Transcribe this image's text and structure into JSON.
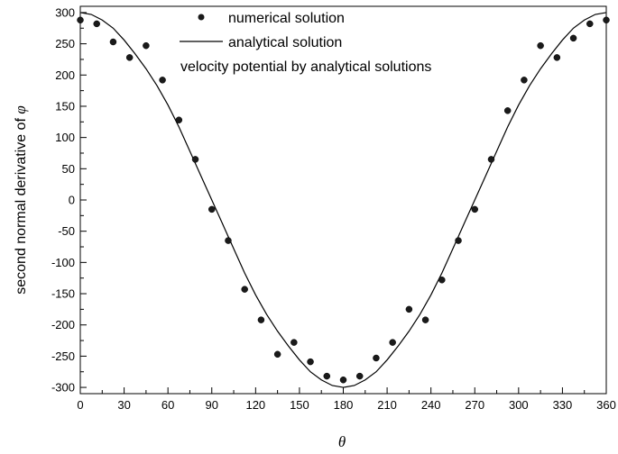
{
  "chart_data": {
    "type": "scatter",
    "title": "",
    "xlabel": "θ",
    "ylabel_text": "second normal derivative of ",
    "ylabel_symbol": "φ",
    "xlim": [
      0,
      360
    ],
    "ylim": [
      -310,
      310
    ],
    "x_ticks": [
      0,
      30,
      60,
      90,
      120,
      150,
      180,
      210,
      240,
      270,
      300,
      330,
      360
    ],
    "y_ticks": [
      300,
      250,
      200,
      150,
      100,
      50,
      0,
      -50,
      -100,
      -150,
      -200,
      -250,
      -300
    ],
    "grid": false,
    "legend": {
      "placement": "top-center",
      "entries": [
        {
          "label": "numerical solution",
          "marker": "point"
        },
        {
          "label": "analytical solution",
          "marker": "line"
        },
        {
          "label": "velocity potential by analytical solutions",
          "marker": "none"
        }
      ]
    },
    "series": [
      {
        "name": "numerical solution",
        "type": "scatter",
        "x": [
          0,
          11.25,
          22.5,
          33.75,
          45,
          56.25,
          67.5,
          78.75,
          90,
          101.25,
          112.5,
          123.75,
          135,
          146.25,
          157.5,
          168.75,
          180,
          191.25,
          202.5,
          213.75,
          225,
          236.25,
          247.5,
          258.75,
          270,
          281.25,
          292.5,
          303.75,
          315,
          326.25,
          337.5,
          348.75,
          360
        ],
        "y": [
          288,
          282,
          253,
          228,
          247,
          192,
          128,
          65,
          -15,
          -65,
          -143,
          -192,
          -247,
          -228,
          -259,
          -282,
          -288,
          -282,
          -253,
          -228,
          -175,
          -192,
          -128,
          -65,
          -15,
          65,
          143,
          192,
          247,
          228,
          259,
          282,
          288
        ]
      },
      {
        "name": "analytical solution",
        "type": "line",
        "x": [
          0,
          7.5,
          15,
          22.5,
          30,
          37.5,
          45,
          52.5,
          60,
          67.5,
          75,
          82.5,
          90,
          97.5,
          105,
          112.5,
          120,
          127.5,
          135,
          142.5,
          150,
          157.5,
          165,
          172.5,
          180,
          187.5,
          195,
          202.5,
          210,
          217.5,
          225,
          232.5,
          240,
          247.5,
          255,
          262.5,
          270,
          277.5,
          285,
          292.5,
          300,
          307.5,
          315,
          322.5,
          330,
          337.5,
          345,
          352.5,
          360
        ],
        "y": [
          300,
          297,
          288,
          275,
          256,
          234,
          210,
          183,
          152,
          117,
          78,
          39,
          0,
          -39,
          -78,
          -117,
          -152,
          -183,
          -210,
          -234,
          -256,
          -275,
          -288,
          -297,
          -300,
          -297,
          -288,
          -275,
          -256,
          -234,
          -210,
          -183,
          -152,
          -117,
          -78,
          -39,
          0,
          39,
          78,
          117,
          152,
          183,
          210,
          234,
          256,
          275,
          288,
          297,
          300
        ]
      }
    ]
  }
}
